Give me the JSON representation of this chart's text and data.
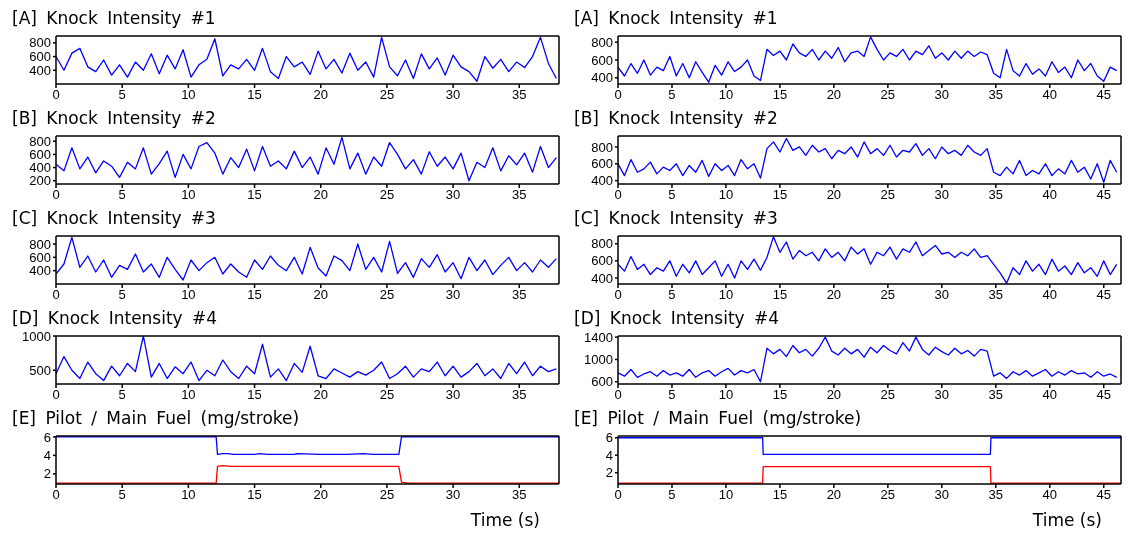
{
  "chart_data": [
    {
      "type": "line",
      "title": "[A] Knock Intensity #1",
      "color": "#0000ff",
      "xlim": [
        0,
        38
      ],
      "xticks": [
        0,
        5,
        10,
        15,
        20,
        25,
        30,
        35
      ],
      "ylim": [
        200,
        900
      ],
      "yticks": [
        400,
        600,
        800
      ],
      "x": [
        0,
        0.6,
        1.2,
        1.8,
        2.4,
        3,
        3.6,
        4.2,
        4.8,
        5.4,
        6,
        6.6,
        7.2,
        7.8,
        8.4,
        9,
        9.6,
        10.2,
        10.8,
        11.4,
        12,
        12.6,
        13.2,
        13.8,
        14.4,
        15,
        15.6,
        16.2,
        16.8,
        17.4,
        18,
        18.6,
        19.2,
        19.8,
        20.4,
        21,
        21.6,
        22.2,
        22.8,
        23.4,
        24,
        24.6,
        25.2,
        25.8,
        26.4,
        27,
        27.6,
        28.2,
        28.8,
        29.4,
        30,
        30.6,
        31.2,
        31.8,
        32.4,
        33,
        33.6,
        34.2,
        34.8,
        35.4,
        36,
        36.6,
        37.2,
        37.8
      ],
      "values": [
        600,
        400,
        650,
        720,
        450,
        380,
        550,
        330,
        480,
        300,
        520,
        400,
        640,
        350,
        620,
        420,
        700,
        300,
        480,
        560,
        860,
        320,
        480,
        420,
        560,
        400,
        720,
        380,
        280,
        600,
        450,
        520,
        340,
        680,
        420,
        560,
        360,
        650,
        400,
        520,
        300,
        880,
        450,
        320,
        550,
        280,
        640,
        420,
        580,
        330,
        620,
        450,
        380,
        240,
        600,
        430,
        560,
        380,
        520,
        440,
        600,
        880,
        500,
        280
      ]
    },
    {
      "type": "line",
      "title": "[A] Knock Intensity #1",
      "color": "#0000ff",
      "xlim": [
        0,
        46.6
      ],
      "xticks": [
        0,
        5,
        10,
        15,
        20,
        25,
        30,
        35,
        40,
        45
      ],
      "ylim": [
        330,
        870
      ],
      "yticks": [
        400,
        600,
        800
      ],
      "x": [
        0,
        0.6,
        1.2,
        1.8,
        2.4,
        3,
        3.6,
        4.2,
        4.8,
        5.4,
        6,
        6.6,
        7.2,
        7.8,
        8.4,
        9,
        9.6,
        10.2,
        10.8,
        11.4,
        12,
        12.6,
        13.2,
        13.8,
        14.4,
        15,
        15.6,
        16.2,
        16.8,
        17.4,
        18,
        18.6,
        19.2,
        19.8,
        20.4,
        21,
        21.6,
        22.2,
        22.8,
        23.4,
        24,
        24.6,
        25.2,
        25.8,
        26.4,
        27,
        27.6,
        28.2,
        28.8,
        29.4,
        30,
        30.6,
        31.2,
        31.8,
        32.4,
        33,
        33.6,
        34.2,
        34.8,
        35.4,
        36,
        36.6,
        37.2,
        37.8,
        38.4,
        39,
        39.6,
        40.2,
        40.8,
        41.4,
        42,
        42.6,
        43.2,
        43.8,
        44.4,
        45,
        45.6,
        46.2
      ],
      "values": [
        520,
        420,
        560,
        450,
        600,
        430,
        520,
        480,
        640,
        420,
        560,
        400,
        580,
        460,
        350,
        540,
        430,
        580,
        470,
        520,
        600,
        420,
        370,
        720,
        650,
        700,
        600,
        780,
        680,
        640,
        720,
        600,
        700,
        620,
        740,
        580,
        680,
        700,
        640,
        860,
        720,
        600,
        680,
        640,
        720,
        600,
        700,
        660,
        760,
        620,
        680,
        600,
        700,
        620,
        700,
        640,
        690,
        660,
        450,
        400,
        720,
        480,
        420,
        560,
        440,
        500,
        420,
        580,
        460,
        520,
        400,
        600,
        480,
        560,
        420,
        360,
        520,
        480
      ]
    },
    {
      "type": "line",
      "title": "[B] Knock Intensity #2",
      "color": "#0000ff",
      "xlim": [
        0,
        38
      ],
      "xticks": [
        0,
        5,
        10,
        15,
        20,
        25,
        30,
        35
      ],
      "ylim": [
        150,
        880
      ],
      "yticks": [
        200,
        400,
        600,
        800
      ],
      "x": [
        0,
        0.6,
        1.2,
        1.8,
        2.4,
        3,
        3.6,
        4.2,
        4.8,
        5.4,
        6,
        6.6,
        7.2,
        7.8,
        8.4,
        9,
        9.6,
        10.2,
        10.8,
        11.4,
        12,
        12.6,
        13.2,
        13.8,
        14.4,
        15,
        15.6,
        16.2,
        16.8,
        17.4,
        18,
        18.6,
        19.2,
        19.8,
        20.4,
        21,
        21.6,
        22.2,
        22.8,
        23.4,
        24,
        24.6,
        25.2,
        25.8,
        26.4,
        27,
        27.6,
        28.2,
        28.8,
        29.4,
        30,
        30.6,
        31.2,
        31.8,
        32.4,
        33,
        33.6,
        34.2,
        34.8,
        35.4,
        36,
        36.6,
        37.2,
        37.8
      ],
      "values": [
        450,
        350,
        700,
        380,
        560,
        320,
        500,
        420,
        250,
        480,
        380,
        700,
        300,
        460,
        650,
        250,
        600,
        380,
        720,
        780,
        620,
        300,
        550,
        400,
        680,
        350,
        720,
        420,
        500,
        380,
        650,
        400,
        560,
        300,
        700,
        450,
        860,
        380,
        620,
        300,
        560,
        420,
        780,
        600,
        380,
        520,
        300,
        640,
        420,
        560,
        380,
        620,
        200,
        480,
        400,
        700,
        350,
        580,
        440,
        620,
        330,
        720,
        400,
        550
      ]
    },
    {
      "type": "line",
      "title": "[B] Knock Intensity #2",
      "color": "#0000ff",
      "xlim": [
        0,
        46.6
      ],
      "xticks": [
        0,
        5,
        10,
        15,
        20,
        25,
        30,
        35,
        40,
        45
      ],
      "ylim": [
        360,
        930
      ],
      "yticks": [
        400,
        600,
        800
      ],
      "x": [
        0,
        0.6,
        1.2,
        1.8,
        2.4,
        3,
        3.6,
        4.2,
        4.8,
        5.4,
        6,
        6.6,
        7.2,
        7.8,
        8.4,
        9,
        9.6,
        10.2,
        10.8,
        11.4,
        12,
        12.6,
        13.2,
        13.8,
        14.4,
        15,
        15.6,
        16.2,
        16.8,
        17.4,
        18,
        18.6,
        19.2,
        19.8,
        20.4,
        21,
        21.6,
        22.2,
        22.8,
        23.4,
        24,
        24.6,
        25.2,
        25.8,
        26.4,
        27,
        27.6,
        28.2,
        28.8,
        29.4,
        30,
        30.6,
        31.2,
        31.8,
        32.4,
        33,
        33.6,
        34.2,
        34.8,
        35.4,
        36,
        36.6,
        37.2,
        37.8,
        38.4,
        39,
        39.6,
        40.2,
        40.8,
        41.4,
        42,
        42.6,
        43.2,
        43.8,
        44.4,
        45,
        45.6,
        46.2
      ],
      "values": [
        600,
        460,
        650,
        500,
        540,
        620,
        480,
        560,
        520,
        600,
        460,
        580,
        500,
        640,
        450,
        600,
        520,
        580,
        460,
        650,
        540,
        600,
        430,
        780,
        860,
        740,
        900,
        760,
        800,
        700,
        820,
        740,
        780,
        660,
        760,
        720,
        800,
        680,
        860,
        720,
        780,
        700,
        820,
        680,
        760,
        740,
        840,
        700,
        780,
        660,
        800,
        720,
        760,
        700,
        820,
        740,
        700,
        780,
        500,
        460,
        560,
        480,
        640,
        460,
        520,
        480,
        600,
        460,
        540,
        480,
        640,
        500,
        560,
        420,
        600,
        380,
        640,
        500
      ]
    },
    {
      "type": "line",
      "title": "[C] Knock Intensity #3",
      "color": "#0000ff",
      "xlim": [
        0,
        38
      ],
      "xticks": [
        0,
        5,
        10,
        15,
        20,
        25,
        30,
        35
      ],
      "ylim": [
        200,
        920
      ],
      "yticks": [
        400,
        600,
        800
      ],
      "x": [
        0,
        0.6,
        1.2,
        1.8,
        2.4,
        3,
        3.6,
        4.2,
        4.8,
        5.4,
        6,
        6.6,
        7.2,
        7.8,
        8.4,
        9,
        9.6,
        10.2,
        10.8,
        11.4,
        12,
        12.6,
        13.2,
        13.8,
        14.4,
        15,
        15.6,
        16.2,
        16.8,
        17.4,
        18,
        18.6,
        19.2,
        19.8,
        20.4,
        21,
        21.6,
        22.2,
        22.8,
        23.4,
        24,
        24.6,
        25.2,
        25.8,
        26.4,
        27,
        27.6,
        28.2,
        28.8,
        29.4,
        30,
        30.6,
        31.2,
        31.8,
        32.4,
        33,
        33.6,
        34.2,
        34.8,
        35.4,
        36,
        36.6,
        37.2,
        37.8
      ],
      "values": [
        350,
        500,
        900,
        450,
        620,
        380,
        560,
        300,
        480,
        420,
        650,
        380,
        500,
        300,
        600,
        420,
        260,
        560,
        400,
        520,
        600,
        350,
        500,
        380,
        300,
        560,
        420,
        620,
        480,
        400,
        600,
        350,
        750,
        440,
        320,
        620,
        550,
        400,
        800,
        420,
        600,
        380,
        840,
        360,
        520,
        300,
        580,
        450,
        640,
        380,
        520,
        280,
        600,
        400,
        560,
        340,
        480,
        600,
        400,
        520,
        380,
        560,
        450,
        580
      ]
    },
    {
      "type": "line",
      "title": "[C] Knock Intensity #3",
      "color": "#0000ff",
      "xlim": [
        0,
        46.6
      ],
      "xticks": [
        0,
        5,
        10,
        15,
        20,
        25,
        30,
        35,
        40,
        45
      ],
      "ylim": [
        330,
        890
      ],
      "yticks": [
        400,
        600,
        800
      ],
      "x": [
        0,
        0.6,
        1.2,
        1.8,
        2.4,
        3,
        3.6,
        4.2,
        4.8,
        5.4,
        6,
        6.6,
        7.2,
        7.8,
        8.4,
        9,
        9.6,
        10.2,
        10.8,
        11.4,
        12,
        12.6,
        13.2,
        13.8,
        14.4,
        15,
        15.6,
        16.2,
        16.8,
        17.4,
        18,
        18.6,
        19.2,
        19.8,
        20.4,
        21,
        21.6,
        22.2,
        22.8,
        23.4,
        24,
        24.6,
        25.2,
        25.8,
        26.4,
        27,
        27.6,
        28.2,
        28.8,
        29.4,
        30,
        30.6,
        31.2,
        31.8,
        32.4,
        33,
        33.6,
        34.2,
        34.8,
        35.4,
        36,
        36.6,
        37.2,
        37.8,
        38.4,
        39,
        39.6,
        40.2,
        40.8,
        41.4,
        42,
        42.6,
        43.2,
        43.8,
        44.4,
        45,
        45.6,
        46.2
      ],
      "values": [
        560,
        480,
        650,
        500,
        560,
        440,
        520,
        480,
        600,
        420,
        560,
        460,
        600,
        440,
        520,
        600,
        420,
        560,
        400,
        600,
        500,
        620,
        490,
        640,
        880,
        700,
        820,
        620,
        720,
        660,
        700,
        600,
        740,
        640,
        700,
        600,
        760,
        680,
        740,
        560,
        700,
        660,
        760,
        620,
        740,
        700,
        820,
        660,
        720,
        780,
        680,
        700,
        640,
        700,
        660,
        740,
        640,
        660,
        560,
        460,
        340,
        520,
        440,
        600,
        480,
        560,
        440,
        620,
        480,
        540,
        440,
        580,
        460,
        520,
        420,
        600,
        440,
        560
      ]
    },
    {
      "type": "line",
      "title": "[D] Knock Intensity #4",
      "color": "#0000ff",
      "xlim": [
        0,
        38
      ],
      "xticks": [
        0,
        5,
        10,
        15,
        20,
        25,
        30,
        35
      ],
      "ylim": [
        300,
        1000
      ],
      "yticks": [
        500,
        1000
      ],
      "x": [
        0,
        0.6,
        1.2,
        1.8,
        2.4,
        3,
        3.6,
        4.2,
        4.8,
        5.4,
        6,
        6.6,
        7.2,
        7.8,
        8.4,
        9,
        9.6,
        10.2,
        10.8,
        11.4,
        12,
        12.6,
        13.2,
        13.8,
        14.4,
        15,
        15.6,
        16.2,
        16.8,
        17.4,
        18,
        18.6,
        19.2,
        19.8,
        20.4,
        21,
        21.6,
        22.2,
        22.8,
        23.4,
        24,
        24.6,
        25.2,
        25.8,
        26.4,
        27,
        27.6,
        28.2,
        28.8,
        29.4,
        30,
        30.6,
        31.2,
        31.8,
        32.4,
        33,
        33.6,
        34.2,
        34.8,
        35.4,
        36,
        36.6,
        37.2,
        37.8
      ],
      "values": [
        450,
        700,
        500,
        380,
        620,
        450,
        350,
        560,
        420,
        600,
        480,
        1000,
        400,
        600,
        380,
        550,
        450,
        620,
        350,
        500,
        420,
        650,
        480,
        380,
        560,
        450,
        880,
        400,
        520,
        350,
        600,
        470,
        850,
        420,
        380,
        520,
        460,
        400,
        480,
        430,
        500,
        620,
        380,
        450,
        560,
        400,
        520,
        480,
        620,
        420,
        560,
        400,
        480,
        600,
        420,
        520,
        380,
        600,
        450,
        620,
        420,
        560,
        480,
        520
      ]
    },
    {
      "type": "line",
      "title": "[D] Knock Intensity #4",
      "color": "#0000ff",
      "xlim": [
        0,
        46.6
      ],
      "xticks": [
        0,
        5,
        10,
        15,
        20,
        25,
        30,
        35,
        40,
        45
      ],
      "ylim": [
        560,
        1420
      ],
      "yticks": [
        600,
        1000,
        1400
      ],
      "x": [
        0,
        0.6,
        1.2,
        1.8,
        2.4,
        3,
        3.6,
        4.2,
        4.8,
        5.4,
        6,
        6.6,
        7.2,
        7.8,
        8.4,
        9,
        9.6,
        10.2,
        10.8,
        11.4,
        12,
        12.6,
        13.2,
        13.8,
        14.4,
        15,
        15.6,
        16.2,
        16.8,
        17.4,
        18,
        18.6,
        19.2,
        19.8,
        20.4,
        21,
        21.6,
        22.2,
        22.8,
        23.4,
        24,
        24.6,
        25.2,
        25.8,
        26.4,
        27,
        27.6,
        28.2,
        28.8,
        29.4,
        30,
        30.6,
        31.2,
        31.8,
        32.4,
        33,
        33.6,
        34.2,
        34.8,
        35.4,
        36,
        36.6,
        37.2,
        37.8,
        38.4,
        39,
        39.6,
        40.2,
        40.8,
        41.4,
        42,
        42.6,
        43.2,
        43.8,
        44.4,
        45,
        45.6,
        46.2
      ],
      "values": [
        760,
        700,
        820,
        680,
        740,
        780,
        700,
        800,
        720,
        760,
        700,
        820,
        680,
        760,
        800,
        700,
        780,
        840,
        720,
        800,
        760,
        820,
        600,
        1200,
        1100,
        1180,
        1050,
        1250,
        1120,
        1180,
        1060,
        1200,
        1400,
        1150,
        1080,
        1200,
        1100,
        1180,
        1040,
        1220,
        1120,
        1250,
        1160,
        1100,
        1300,
        1150,
        1400,
        1180,
        1080,
        1220,
        1140,
        1080,
        1200,
        1100,
        1160,
        1060,
        1180,
        1150,
        700,
        760,
        660,
        780,
        720,
        800,
        700,
        760,
        820,
        700,
        780,
        720,
        800,
        740,
        760,
        680,
        780,
        700,
        740,
        680
      ]
    },
    {
      "type": "line",
      "title": "[E] Pilot / Main Fuel (mg/stroke)",
      "xlabel": "Time (s)",
      "xlim": [
        0,
        38
      ],
      "xticks": [
        0,
        5,
        10,
        15,
        20,
        25,
        30,
        35
      ],
      "ylim": [
        0.9,
        6.1
      ],
      "yticks": [
        2,
        4,
        6
      ],
      "series": [
        {
          "color": "#0000ff",
          "x": [
            0,
            12.1,
            12.2,
            12.6,
            13,
            13.4,
            14,
            15,
            15.4,
            16,
            17,
            18,
            18.2,
            20,
            22,
            23.2,
            24,
            25.9,
            26.1,
            38
          ],
          "values": [
            6,
            6,
            4.1,
            4.2,
            4.2,
            4.1,
            4.1,
            4.1,
            4.2,
            4.1,
            4.1,
            4.1,
            4.2,
            4.1,
            4.1,
            4.2,
            4.1,
            4.1,
            6,
            6
          ]
        },
        {
          "color": "#ff0000",
          "x": [
            0,
            12.1,
            12.2,
            12.6,
            13.2,
            20,
            25.9,
            26.1,
            26.6,
            26.9,
            38
          ],
          "values": [
            1,
            1,
            2.8,
            2.9,
            2.8,
            2.8,
            2.8,
            1.1,
            1,
            1,
            1
          ]
        }
      ]
    },
    {
      "type": "line",
      "title": "[E] Pilot / Main Fuel (mg/stroke)",
      "xlabel": "Time (s)",
      "xlim": [
        0,
        46.6
      ],
      "xticks": [
        0,
        5,
        10,
        15,
        20,
        25,
        30,
        35,
        40,
        45
      ],
      "ylim": [
        0.7,
        6.2
      ],
      "yticks": [
        2,
        4,
        6
      ],
      "series": [
        {
          "color": "#0000ff",
          "x": [
            0,
            13.4,
            13.45,
            34.5,
            34.55,
            46.6
          ],
          "values": [
            6,
            6,
            4.1,
            4.1,
            6,
            6
          ]
        },
        {
          "color": "#ff0000",
          "x": [
            0,
            13.4,
            13.45,
            34.5,
            34.55,
            46.6
          ],
          "values": [
            0.8,
            0.8,
            2.7,
            2.7,
            0.8,
            0.8
          ]
        }
      ]
    }
  ]
}
